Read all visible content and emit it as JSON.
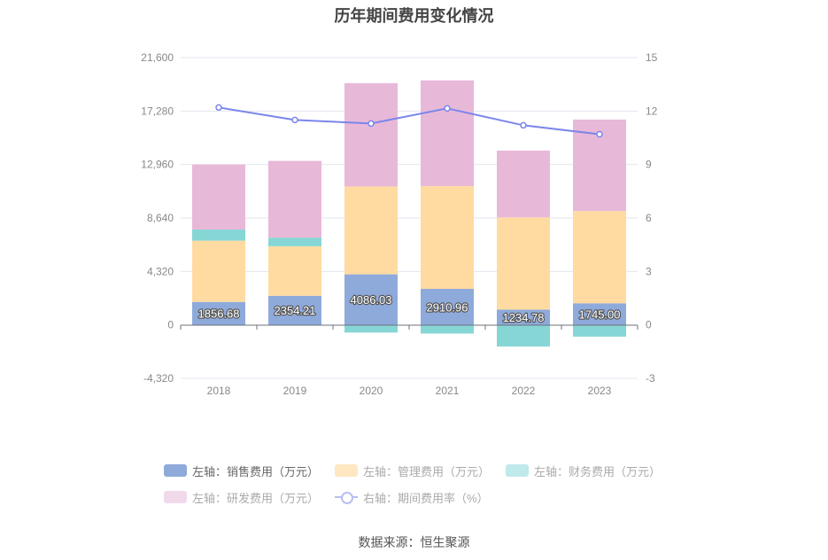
{
  "title": "历年期间费用变化情况",
  "source": "数据来源：恒生聚源",
  "chart_data": {
    "type": "bar",
    "stacked": true,
    "categories": [
      "2018",
      "2019",
      "2020",
      "2021",
      "2022",
      "2023"
    ],
    "left_axis": {
      "ticks": [
        "21,600",
        "17,280",
        "12,960",
        "8,640",
        "4,320",
        "0",
        "-4,320"
      ],
      "ylim": [
        -4320,
        21600
      ]
    },
    "right_axis": {
      "ticks": [
        "15",
        "12",
        "9",
        "6",
        "3",
        "0",
        "-3"
      ],
      "ylim": [
        -3,
        15
      ]
    },
    "grid": true,
    "legend_position": "bottom",
    "series": [
      {
        "name": "左轴：销售费用（万元）",
        "axis": "left",
        "color": "#8eaadb",
        "values": [
          1856.68,
          2354.21,
          4086.03,
          2910.96,
          1234.78,
          1745.0
        ],
        "labels": [
          "1856.68",
          "2354.21",
          "4086.03",
          "2910.96",
          "1234.78",
          "1745.00"
        ]
      },
      {
        "name": "左轴：管理费用（万元）",
        "axis": "left",
        "color": "#ffdba1",
        "values": [
          4950,
          4000,
          7100,
          8300,
          7450,
          7450
        ]
      },
      {
        "name": "左轴：财务费用（万元）",
        "axis": "left",
        "color": "#87d6d6",
        "values": [
          900,
          700,
          -620,
          -700,
          -1750,
          -950
        ]
      },
      {
        "name": "左轴：研发费用（万元）",
        "axis": "left",
        "color": "#e8b8d9",
        "values": [
          5250,
          6200,
          8350,
          8550,
          5400,
          7400
        ]
      },
      {
        "name": "右轴：期间费用率（%）",
        "axis": "right",
        "type": "line",
        "color": "#7b86ea",
        "values": [
          12.2,
          11.5,
          11.3,
          12.15,
          11.2,
          10.7
        ]
      }
    ]
  },
  "legend": {
    "rows": [
      [
        {
          "label": "左轴：销售费用（万元）",
          "color": "#8eaadb",
          "active": true,
          "kind": "box"
        },
        {
          "label": "左轴：管理费用（万元）",
          "color": "#ffe7c2",
          "active": false,
          "kind": "box"
        },
        {
          "label": "左轴：财务费用（万元）",
          "color": "#bfe9ea",
          "active": false,
          "kind": "box"
        }
      ],
      [
        {
          "label": "左轴：研发费用（万元）",
          "color": "#f1d9ec",
          "active": false,
          "kind": "box"
        },
        {
          "label": "右轴：期间费用率（%）",
          "color": "#b9bff2",
          "active": false,
          "kind": "line"
        }
      ]
    ]
  }
}
